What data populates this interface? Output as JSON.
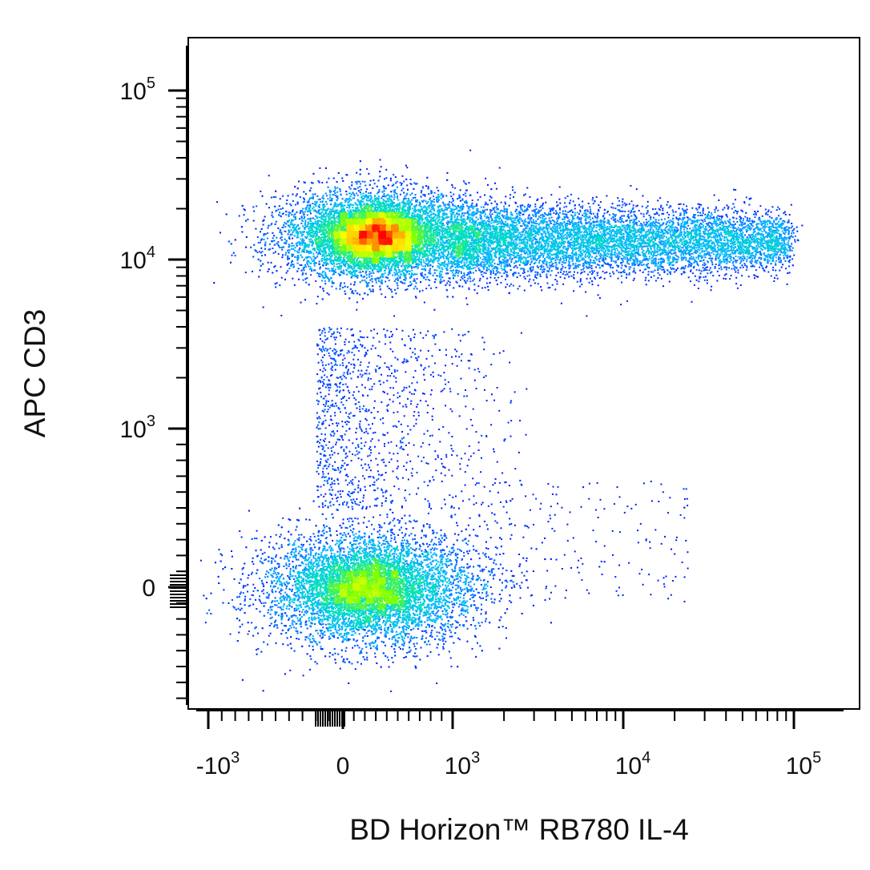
{
  "chart_data": {
    "type": "scatter",
    "subtype": "flow-cytometry-density-dot-plot",
    "xlabel": "BD Horizon™ RB780 IL-4",
    "ylabel": "APC CD3",
    "x_scale": "biexponential",
    "y_scale": "biexponential",
    "xlim": [
      -1600,
      200000
    ],
    "ylim": [
      -500,
      220000
    ],
    "x_ticks": [
      {
        "value": -1000,
        "base": "-10",
        "exp": "3"
      },
      {
        "value": 0,
        "base": "0",
        "exp": ""
      },
      {
        "value": 1000,
        "base": "10",
        "exp": "3"
      },
      {
        "value": 10000,
        "base": "10",
        "exp": "4"
      },
      {
        "value": 100000,
        "base": "10",
        "exp": "5"
      }
    ],
    "y_ticks": [
      {
        "value": 0,
        "base": "0",
        "exp": ""
      },
      {
        "value": 1000,
        "base": "10",
        "exp": "3"
      },
      {
        "value": 10000,
        "base": "10",
        "exp": "4"
      },
      {
        "value": 100000,
        "base": "10",
        "exp": "5"
      }
    ],
    "grid": false,
    "legend": "none",
    "color_scale": [
      "#0000ff",
      "#00b4ff",
      "#00e0c0",
      "#7fff00",
      "#ffff00",
      "#ff8000",
      "#ff0000"
    ],
    "populations": [
      {
        "name": "CD3+ IL-4-",
        "x_center": 300,
        "y_center": 14000,
        "density_peak": "high"
      },
      {
        "name": "CD3+ IL-4+",
        "x_range": [
          1500,
          60000
        ],
        "y_center": 13000,
        "density_peak": "medium"
      },
      {
        "name": "CD3- IL-4-",
        "x_center": 250,
        "y_center": 0,
        "density_peak": "medium"
      },
      {
        "name": "sparse intermediate",
        "x_range": [
          -200,
          3000
        ],
        "y_range": [
          500,
          4000
        ],
        "density_peak": "low"
      }
    ]
  }
}
